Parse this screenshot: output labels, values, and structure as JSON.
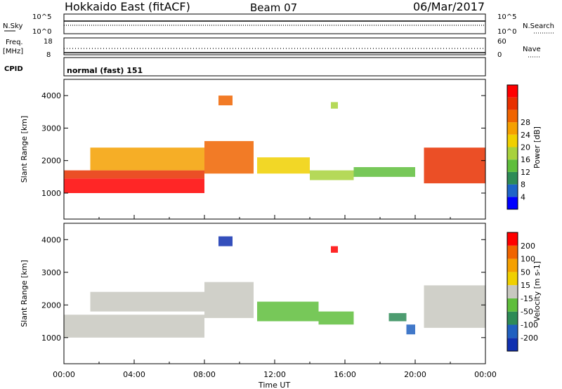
{
  "header": {
    "title": "Hokkaido East (fitACF)",
    "beam": "Beam 07",
    "date": "06/Mar/2017"
  },
  "noise_panel": {
    "left_label": "N.Sky",
    "right_label": "N.Search",
    "left_ticks": [
      "10^5",
      "10^0"
    ],
    "right_ticks": [
      "10^5",
      "10^0"
    ]
  },
  "freq_panel": {
    "left_label_top": "Freq.",
    "left_label_unit": "[MHz]",
    "right_label": "Nave",
    "left_ticks": [
      "18",
      "8"
    ],
    "right_ticks": [
      "60",
      "0"
    ]
  },
  "cpid": {
    "label": "CPID",
    "value": "normal (fast) 151"
  },
  "power_colorbar": {
    "label": "Power [dB]",
    "ticks": [
      "4",
      "8",
      "12",
      "16",
      "20",
      "24",
      "28"
    ],
    "colors": [
      "#0000ff",
      "#1e64c8",
      "#2e8b57",
      "#5fbe3c",
      "#a8d23c",
      "#f0d000",
      "#f5a000",
      "#f06400",
      "#e83000",
      "#ff0000"
    ]
  },
  "velocity_colorbar": {
    "label": "Velocity [m s-1]",
    "ticks": [
      "200",
      "100",
      "50",
      "15",
      "-15",
      "-50",
      "-100",
      "-200"
    ],
    "colors": [
      "#1030b0",
      "#2060c0",
      "#2e8b57",
      "#5fbe3c",
      "#c8c8c0",
      "#f0d000",
      "#f5a000",
      "#f06400",
      "#ff0000"
    ]
  },
  "chart_data": [
    {
      "type": "heatmap",
      "name": "power",
      "ylabel": "Slant Range [km]",
      "yticks": [
        "1000",
        "2000",
        "3000",
        "4000"
      ],
      "ylim": [
        200,
        4500
      ],
      "xlim": [
        0,
        24
      ],
      "bands": [
        {
          "t0": 0.0,
          "t1": 8.0,
          "r0": 1000,
          "r1": 1450,
          "level": 9
        },
        {
          "t0": 0.0,
          "t1": 8.0,
          "r0": 1450,
          "r1": 1700,
          "level": 8
        },
        {
          "t0": 1.5,
          "t1": 8.0,
          "r0": 1700,
          "r1": 2400,
          "level": 6
        },
        {
          "t0": 8.0,
          "t1": 10.8,
          "r0": 1600,
          "r1": 2600,
          "level": 7
        },
        {
          "t0": 11.0,
          "t1": 14.0,
          "r0": 1600,
          "r1": 2100,
          "level": 5
        },
        {
          "t0": 14.0,
          "t1": 16.5,
          "r0": 1400,
          "r1": 1700,
          "level": 4
        },
        {
          "t0": 16.5,
          "t1": 20.0,
          "r0": 1500,
          "r1": 1800,
          "level": 3
        },
        {
          "t0": 20.5,
          "t1": 24.0,
          "r0": 1300,
          "r1": 2400,
          "level": 8
        },
        {
          "t0": 8.8,
          "t1": 9.6,
          "r0": 3700,
          "r1": 4000,
          "level": 7
        },
        {
          "t0": 15.2,
          "t1": 15.6,
          "r0": 3600,
          "r1": 3800,
          "level": 4
        }
      ]
    },
    {
      "type": "heatmap",
      "name": "velocity",
      "ylabel": "Slant Range [km]",
      "yticks": [
        "1000",
        "2000",
        "3000",
        "4000"
      ],
      "ylim": [
        200,
        4500
      ],
      "xlim": [
        0,
        24
      ],
      "xlabel": "Time UT",
      "xticks": [
        "00:00",
        "04:00",
        "08:00",
        "12:00",
        "16:00",
        "20:00",
        "00:00"
      ],
      "bands": [
        {
          "t0": 0.0,
          "t1": 8.0,
          "r0": 1000,
          "r1": 1700,
          "level": 4
        },
        {
          "t0": 1.5,
          "t1": 8.0,
          "r0": 1800,
          "r1": 2400,
          "level": 4
        },
        {
          "t0": 8.0,
          "t1": 10.8,
          "r0": 1600,
          "r1": 2700,
          "level": 4
        },
        {
          "t0": 11.0,
          "t1": 14.5,
          "r0": 1500,
          "r1": 2100,
          "level": 3
        },
        {
          "t0": 14.5,
          "t1": 16.5,
          "r0": 1400,
          "r1": 1800,
          "level": 3
        },
        {
          "t0": 18.5,
          "t1": 19.5,
          "r0": 1500,
          "r1": 1750,
          "level": 2
        },
        {
          "t0": 19.5,
          "t1": 20.0,
          "r0": 1100,
          "r1": 1400,
          "level": 1
        },
        {
          "t0": 20.5,
          "t1": 24.0,
          "r0": 1300,
          "r1": 2600,
          "level": 4
        },
        {
          "t0": 8.8,
          "t1": 9.6,
          "r0": 3800,
          "r1": 4100,
          "level": 0
        },
        {
          "t0": 15.2,
          "t1": 15.6,
          "r0": 3600,
          "r1": 3800,
          "level": 8
        }
      ]
    }
  ]
}
